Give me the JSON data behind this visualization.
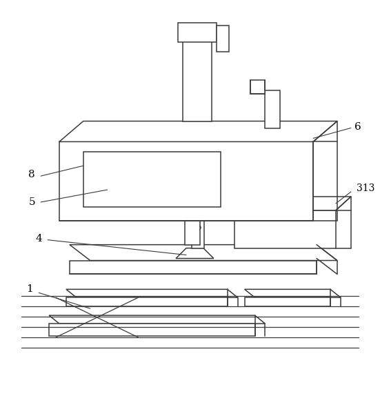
{
  "figure_size": [
    5.51,
    5.74
  ],
  "dpi": 100,
  "bg_color": "#ffffff",
  "line_color": "#3a3a3a",
  "line_width": 1.1,
  "label_fontsize": 11
}
